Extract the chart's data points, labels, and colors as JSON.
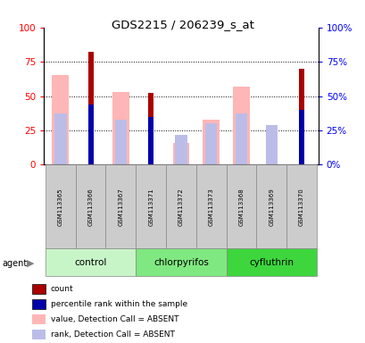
{
  "title": "GDS2215 / 206239_s_at",
  "samples": [
    "GSM113365",
    "GSM113366",
    "GSM113367",
    "GSM113371",
    "GSM113372",
    "GSM113373",
    "GSM113368",
    "GSM113369",
    "GSM113370"
  ],
  "count_bars": [
    0,
    82,
    0,
    52,
    0,
    0,
    0,
    0,
    70
  ],
  "percentile_bars": [
    0,
    44,
    0,
    35,
    0,
    0,
    0,
    0,
    40
  ],
  "value_absent_bars": [
    65,
    0,
    53,
    0,
    16,
    33,
    57,
    0,
    0
  ],
  "rank_absent_bars": [
    37,
    0,
    33,
    0,
    22,
    30,
    37,
    29,
    0
  ],
  "count_color": "#AA0000",
  "percentile_color": "#0000AA",
  "value_absent_color": "#FFB6B6",
  "rank_absent_color": "#BBBDE8",
  "group_names": [
    "control",
    "chlorpyrifos",
    "cyfluthrin"
  ],
  "group_colors": [
    "#C8F5C8",
    "#80E880",
    "#3DD63D"
  ],
  "group_ranges": [
    [
      0,
      2
    ],
    [
      3,
      5
    ],
    [
      6,
      8
    ]
  ],
  "ylim": [
    0,
    100
  ],
  "yticks": [
    0,
    25,
    50,
    75,
    100
  ]
}
